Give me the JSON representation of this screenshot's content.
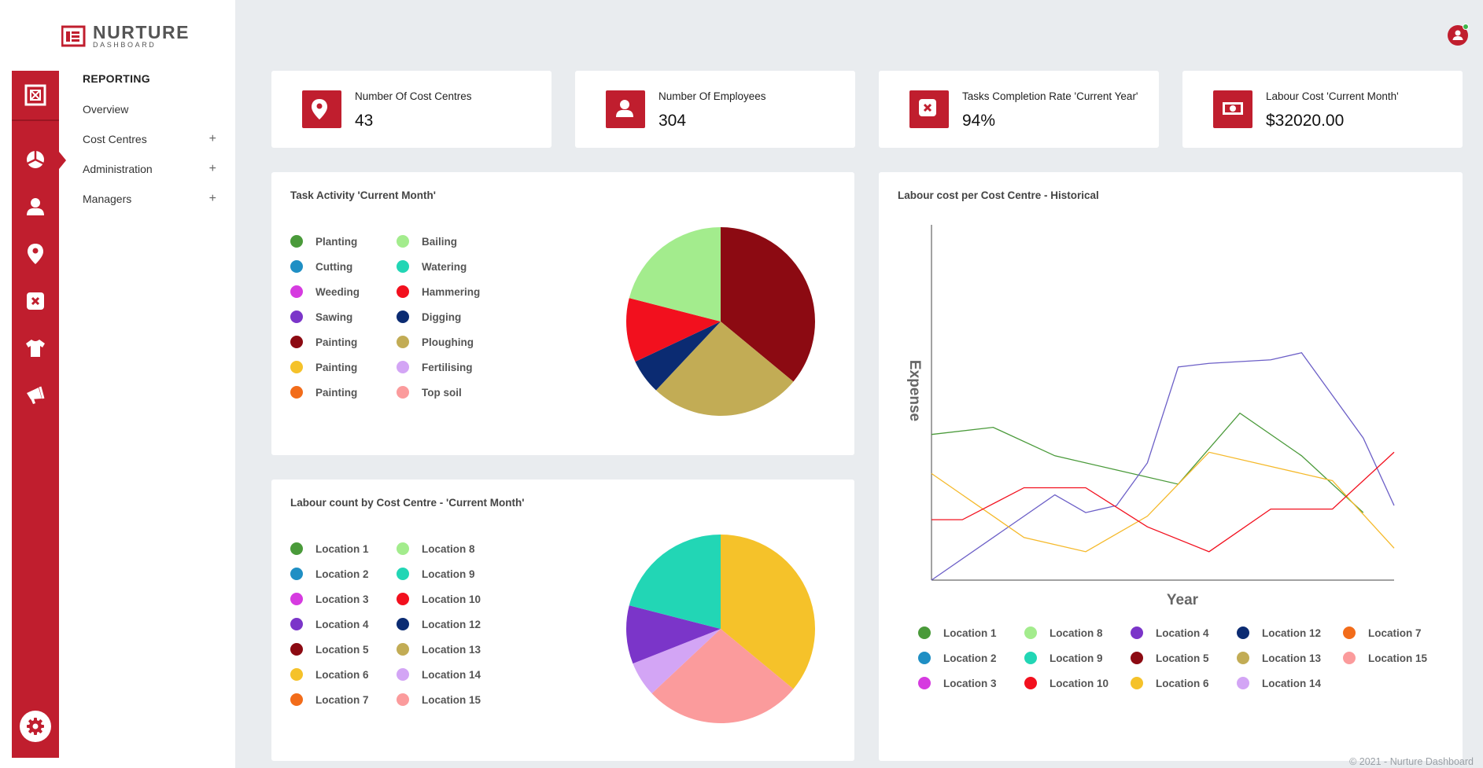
{
  "brand": {
    "title": "NURTURE",
    "subtitle": "DASHBOARD"
  },
  "nav": {
    "heading": "REPORTING",
    "items": [
      {
        "label": "Overview",
        "expandable": false
      },
      {
        "label": "Cost Centres",
        "expandable": true
      },
      {
        "label": "Administration",
        "expandable": true
      },
      {
        "label": "Managers",
        "expandable": true
      }
    ],
    "expand_symbol": "+"
  },
  "rail_icons": [
    "dashboard-icon",
    "pie-chart-icon",
    "user-icon",
    "map-pin-icon",
    "close-box-icon",
    "shirt-icon",
    "megaphone-icon",
    "gear-icon"
  ],
  "stats": [
    {
      "label": "Number Of Cost Centres",
      "value": "43",
      "icon": "map-pin-icon"
    },
    {
      "label": "Number Of Employees",
      "value": "304",
      "icon": "user-icon"
    },
    {
      "label": "Tasks Completion Rate 'Current Year'",
      "value": "94%",
      "icon": "close-box-icon"
    },
    {
      "label": "Labour Cost 'Current Month'",
      "value": "$32020.00",
      "icon": "cash-icon"
    }
  ],
  "colors": {
    "brand_red": "#c01e2e",
    "series": [
      "#4a9a3a",
      "#1f8fc4",
      "#d63be0",
      "#7b35c9",
      "#8c0a12",
      "#f5c22a",
      "#f26c1a",
      "#a3ec8d",
      "#22d6b5",
      "#f2101e",
      "#0b2b72",
      "#c2ac55",
      "#d3a5f5",
      "#fb9b9c"
    ]
  },
  "chart_data": [
    {
      "type": "pie",
      "title": "Task Activity 'Current Month'",
      "legend": [
        {
          "label": "Planting",
          "color": "#4a9a3a"
        },
        {
          "label": "Cutting",
          "color": "#1f8fc4"
        },
        {
          "label": "Weeding",
          "color": "#d63be0"
        },
        {
          "label": "Sawing",
          "color": "#7b35c9"
        },
        {
          "label": "Painting",
          "color": "#8c0a12"
        },
        {
          "label": "Painting",
          "color": "#f5c22a"
        },
        {
          "label": "Painting",
          "color": "#f26c1a"
        },
        {
          "label": "Bailing",
          "color": "#a3ec8d"
        },
        {
          "label": "Watering",
          "color": "#22d6b5"
        },
        {
          "label": "Hammering",
          "color": "#f2101e"
        },
        {
          "label": "Digging",
          "color": "#0b2b72"
        },
        {
          "label": "Ploughing",
          "color": "#c2ac55"
        },
        {
          "label": "Fertilising",
          "color": "#d3a5f5"
        },
        {
          "label": "Top soil",
          "color": "#fb9b9c"
        }
      ],
      "slices": [
        {
          "label": "Painting",
          "value": 36,
          "color": "#8c0a12"
        },
        {
          "label": "Ploughing",
          "value": 26,
          "color": "#c2ac55"
        },
        {
          "label": "Digging",
          "value": 6,
          "color": "#0b2b72"
        },
        {
          "label": "Hammering",
          "value": 11,
          "color": "#f2101e"
        },
        {
          "label": "Bailing",
          "value": 21,
          "color": "#a3ec8d"
        }
      ]
    },
    {
      "type": "pie",
      "title": "Labour count by Cost Centre - 'Current Month'",
      "legend": [
        {
          "label": "Location 1",
          "color": "#4a9a3a"
        },
        {
          "label": "Location 2",
          "color": "#1f8fc4"
        },
        {
          "label": "Location 3",
          "color": "#d63be0"
        },
        {
          "label": "Location 4",
          "color": "#7b35c9"
        },
        {
          "label": "Location 5",
          "color": "#8c0a12"
        },
        {
          "label": "Location 6",
          "color": "#f5c22a"
        },
        {
          "label": "Location 7",
          "color": "#f26c1a"
        },
        {
          "label": "Location 8",
          "color": "#a3ec8d"
        },
        {
          "label": "Location 9",
          "color": "#22d6b5"
        },
        {
          "label": "Location 10",
          "color": "#f2101e"
        },
        {
          "label": "Location 12",
          "color": "#0b2b72"
        },
        {
          "label": "Location 13",
          "color": "#c2ac55"
        },
        {
          "label": "Location 14",
          "color": "#d3a5f5"
        },
        {
          "label": "Location 15",
          "color": "#fb9b9c"
        }
      ],
      "slices": [
        {
          "label": "Location 6",
          "value": 36,
          "color": "#f5c22a"
        },
        {
          "label": "Location 15",
          "value": 27,
          "color": "#fb9b9c"
        },
        {
          "label": "Location 14",
          "value": 6,
          "color": "#d3a5f5"
        },
        {
          "label": "Location 4",
          "value": 10,
          "color": "#7b35c9"
        },
        {
          "label": "Location 9",
          "value": 21,
          "color": "#22d6b5"
        }
      ]
    },
    {
      "type": "line",
      "title": "Labour cost per Cost Centre - Historical",
      "xlabel": "Year",
      "ylabel": "Expense",
      "x": [
        0,
        1,
        2,
        3,
        4,
        5,
        6,
        7,
        8,
        9,
        10,
        11,
        12,
        13,
        14,
        15
      ],
      "xlim": [
        0,
        15
      ],
      "ylim": [
        0,
        100
      ],
      "grid": false,
      "legend_position": "bottom",
      "series": [
        {
          "name": "Location 1",
          "color": "#4a9a3a",
          "values": [
            41,
            null,
            43,
            null,
            35,
            null,
            31,
            null,
            27,
            null,
            47,
            null,
            35,
            null,
            19,
            null
          ]
        },
        {
          "name": "Location 4",
          "color": "#6c5fc7",
          "values": [
            0,
            null,
            null,
            null,
            24,
            19,
            21,
            33,
            60,
            61,
            null,
            62,
            64,
            null,
            40,
            21
          ]
        },
        {
          "name": "Location 6",
          "color": "#f5b92a",
          "values": [
            30,
            24,
            null,
            12,
            null,
            8,
            null,
            18,
            null,
            36,
            null,
            32,
            null,
            28,
            null,
            9
          ]
        },
        {
          "name": "Location 10",
          "color": "#f2101e",
          "values": [
            17,
            17,
            null,
            26,
            null,
            26,
            null,
            15,
            null,
            8,
            null,
            20,
            null,
            20,
            null,
            36
          ]
        }
      ],
      "legend": [
        {
          "label": "Location 1",
          "color": "#4a9a3a"
        },
        {
          "label": "Location 8",
          "color": "#a3ec8d"
        },
        {
          "label": "Location 4",
          "color": "#7b35c9"
        },
        {
          "label": "Location 12",
          "color": "#0b2b72"
        },
        {
          "label": "Location 7",
          "color": "#f26c1a"
        },
        {
          "label": "Location 2",
          "color": "#1f8fc4"
        },
        {
          "label": "Location 9",
          "color": "#22d6b5"
        },
        {
          "label": "Location 5",
          "color": "#8c0a12"
        },
        {
          "label": "Location 13",
          "color": "#c2ac55"
        },
        {
          "label": "Location 15",
          "color": "#fb9b9c"
        },
        {
          "label": "Location 3",
          "color": "#d63be0"
        },
        {
          "label": "Location 10",
          "color": "#f2101e"
        },
        {
          "label": "Location 6",
          "color": "#f5c22a"
        },
        {
          "label": "Location 14",
          "color": "#d3a5f5"
        }
      ]
    }
  ],
  "footer": "© 2021 - Nurture Dashboard"
}
